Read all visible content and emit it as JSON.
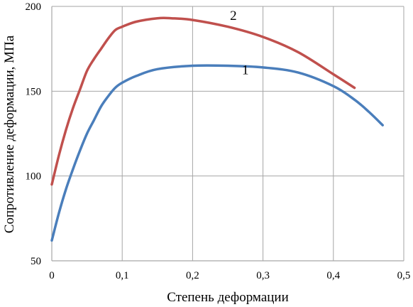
{
  "chart_data": {
    "type": "line",
    "xlabel": "Степень деформации",
    "ylabel": "Сопротивление деформации,  МПа",
    "xlim": [
      0,
      0.5
    ],
    "ylim": [
      50,
      200
    ],
    "x_ticks": [
      "0",
      "0,1",
      "0,2",
      "0,3",
      "0,4",
      "0,5"
    ],
    "y_ticks": [
      "50",
      "100",
      "150",
      "200"
    ],
    "x_tick_values": [
      0,
      0.1,
      0.2,
      0.3,
      0.4,
      0.5
    ],
    "y_tick_values": [
      50,
      100,
      150,
      200
    ],
    "grid": true,
    "series": [
      {
        "label": "1",
        "color": "#4a7ebb",
        "x": [
          0,
          0.01,
          0.02,
          0.03,
          0.04,
          0.05,
          0.06,
          0.07,
          0.08,
          0.09,
          0.1,
          0.12,
          0.15,
          0.2,
          0.25,
          0.3,
          0.35,
          0.4,
          0.43,
          0.45,
          0.47
        ],
        "y": [
          62,
          78,
          92,
          104,
          115,
          125,
          133,
          141,
          147,
          152,
          155,
          159,
          163,
          165,
          165,
          164,
          161,
          153,
          145,
          138,
          130
        ]
      },
      {
        "label": "2",
        "color": "#c0504d",
        "x": [
          0,
          0.01,
          0.02,
          0.03,
          0.04,
          0.05,
          0.06,
          0.07,
          0.08,
          0.09,
          0.1,
          0.12,
          0.15,
          0.17,
          0.2,
          0.25,
          0.3,
          0.35,
          0.4,
          0.43
        ],
        "y": [
          95,
          112,
          127,
          140,
          151,
          162,
          169,
          175,
          181,
          186,
          188,
          191,
          193,
          193,
          192,
          188,
          182,
          173,
          160,
          152
        ]
      }
    ]
  }
}
